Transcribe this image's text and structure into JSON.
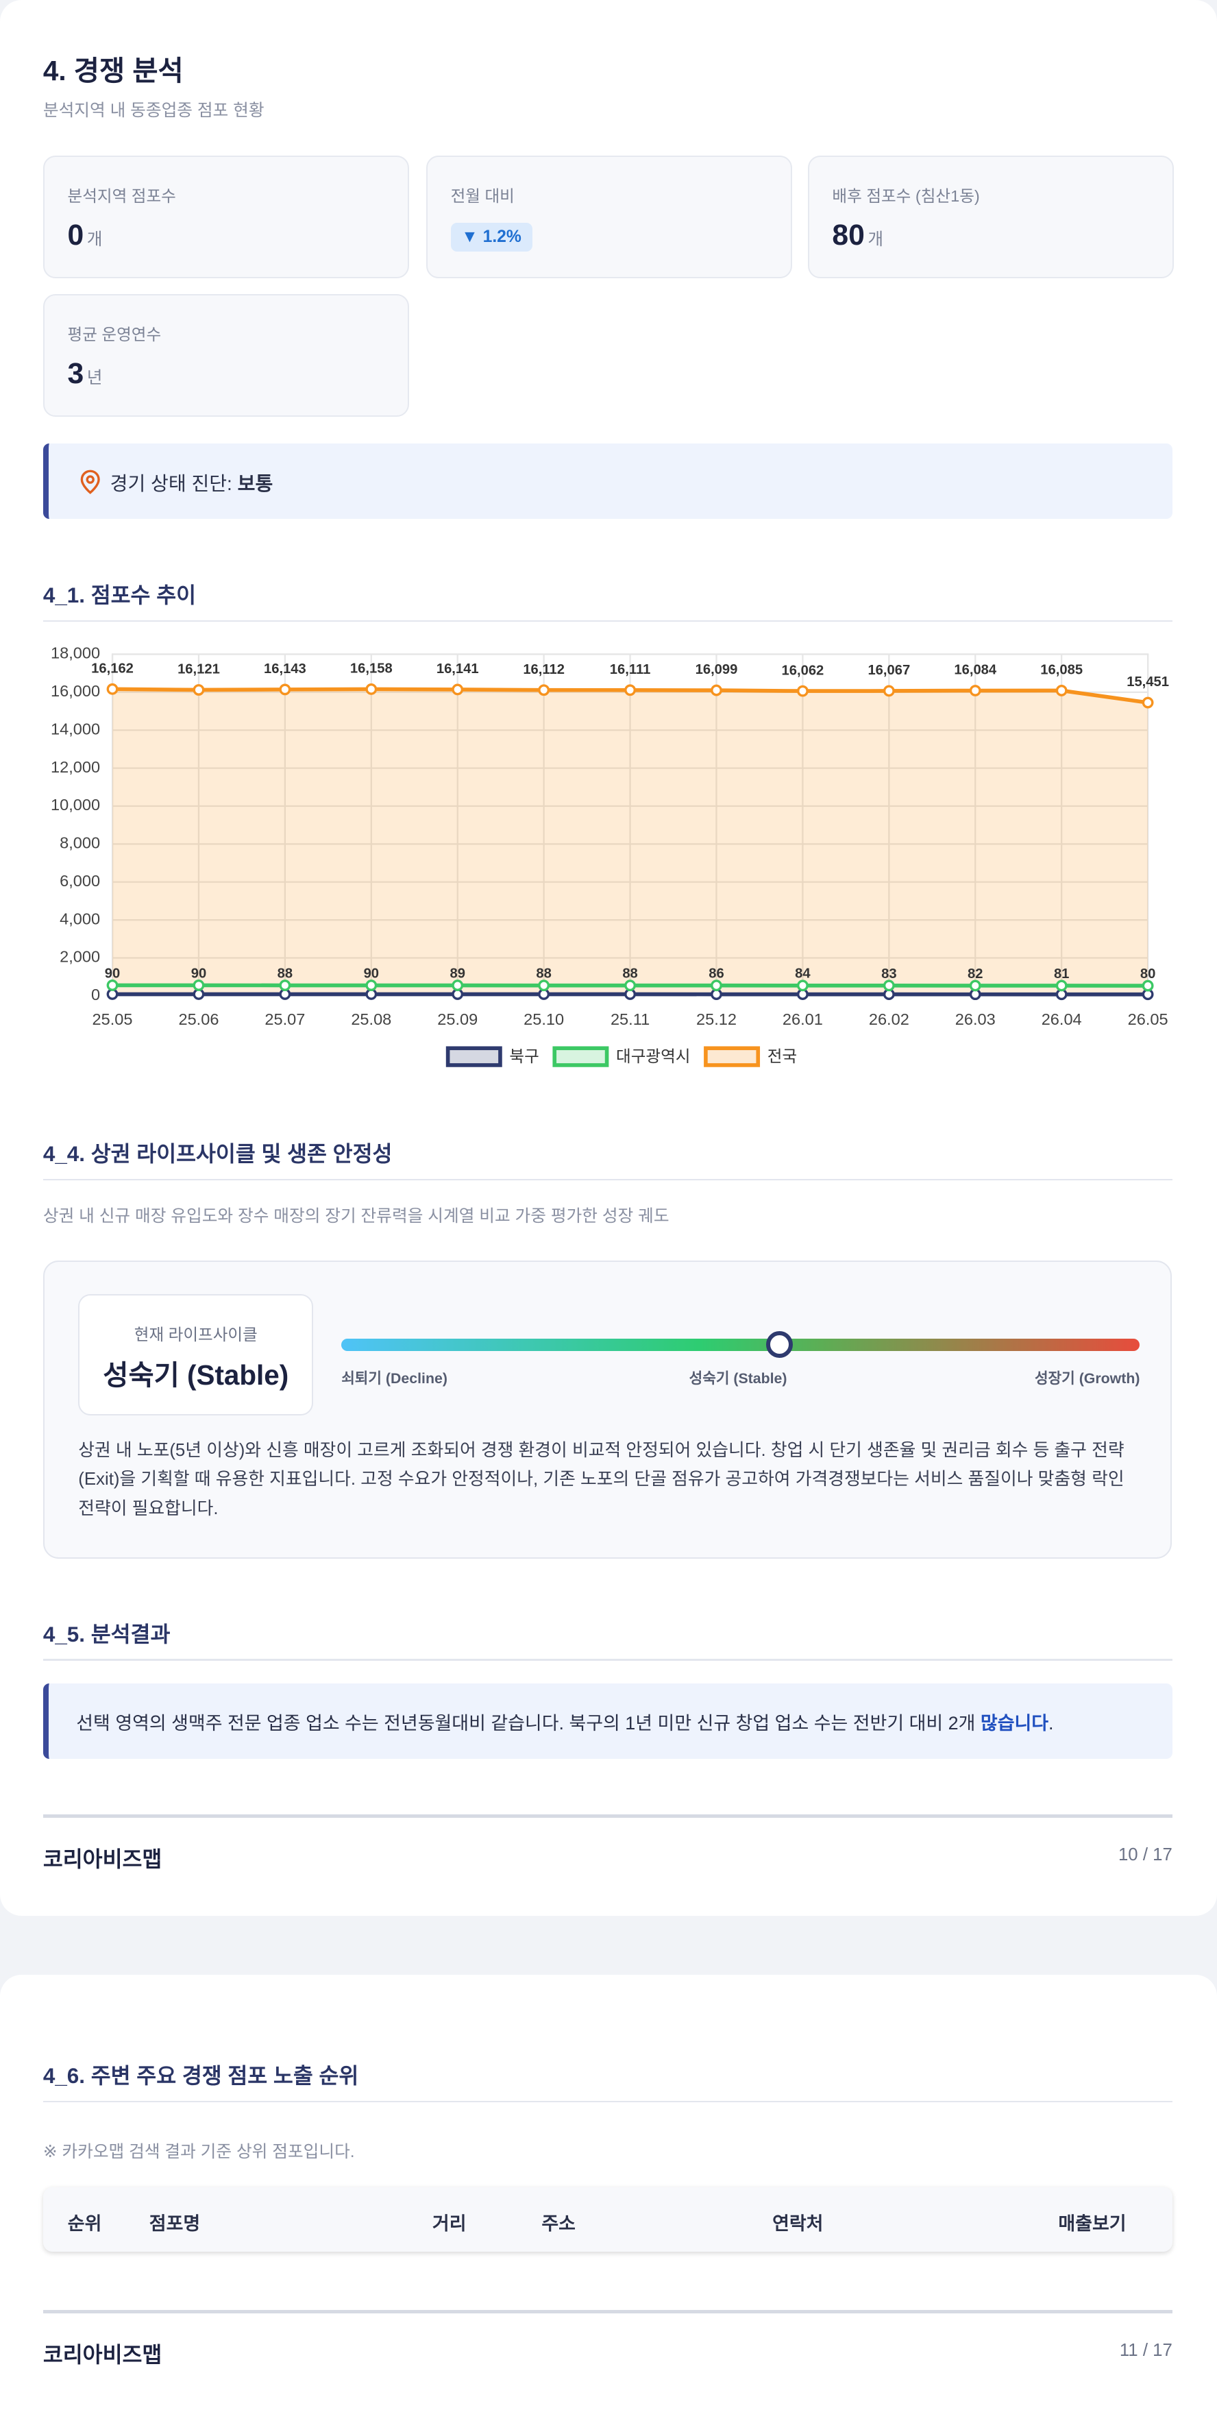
{
  "section": {
    "title": "4. 경쟁 분석",
    "subtitle": "분석지역 내 동종업종 점포 현황"
  },
  "stats": [
    {
      "label": "분석지역 점포수",
      "value": 0,
      "unit": "개"
    },
    {
      "label": "전월 대비",
      "value": "1.2%"
    },
    {
      "label": "배후 점포수 (침산1동)",
      "value": 80,
      "unit": "개"
    },
    {
      "label": "평균 운영연수",
      "value": 3,
      "unit": "년"
    }
  ],
  "diagnosis": {
    "label": "경기 상태 진단:",
    "value": "보통"
  },
  "trend": {
    "title": "4_1. 점포수 추이"
  },
  "chart_data": {
    "type": "line",
    "categories": [
      "25.05",
      "25.06",
      "25.07",
      "25.08",
      "25.09",
      "25.10",
      "25.11",
      "25.12",
      "26.01",
      "26.02",
      "26.03",
      "26.04",
      "26.05"
    ],
    "ylim": [
      0,
      18000
    ],
    "yticks": [
      0,
      {
        "value": 2000,
        "label": "2,000"
      },
      {
        "value": 4000,
        "label": "4,000"
      },
      {
        "value": 6000,
        "label": "6,000"
      },
      {
        "value": 8000,
        "label": "8,000"
      },
      {
        "value": 10000,
        "label": "10,000"
      },
      {
        "value": 12000,
        "label": "12,000"
      },
      {
        "value": 14000,
        "label": "14,000"
      },
      {
        "value": 16000,
        "label": "16,000"
      },
      {
        "value": 18000,
        "label": "18,000"
      }
    ],
    "grid": true,
    "legend": "bottom",
    "series": [
      {
        "name": "북구",
        "color": "#2e3a6e",
        "data_labels": true,
        "values": [
          90,
          90,
          88,
          90,
          89,
          88,
          88,
          86,
          84,
          83,
          82,
          81,
          80
        ]
      },
      {
        "name": "대구광역시",
        "color": "#3cc864",
        "values": [
          560,
          560,
          555,
          555,
          555,
          550,
          550,
          548,
          545,
          545,
          540,
          540,
          535
        ]
      },
      {
        "name": "전국",
        "color": "#f7931e",
        "area": true,
        "data_labels": true,
        "values": [
          16162,
          16121,
          16143,
          16158,
          16141,
          16112,
          16111,
          16099,
          16062,
          16067,
          16084,
          16085,
          15451
        ],
        "value_labels": [
          "16,162",
          "16,121",
          "16,143",
          "16,158",
          "16,141",
          "16,112",
          "16,111",
          "16,099",
          "16,062",
          "16,067",
          "16,084",
          "16,085",
          "15,451"
        ]
      }
    ]
  },
  "lifecycle": {
    "title": "4_4. 상권 라이프사이클 및 생존 안정성",
    "subtitle": "상권 내 신규 매장 유입도와 장수 매장의 장기 잔류력을 시계열 비교 가중 평가한 성장 궤도",
    "current_label": "현재 라이프사이클",
    "current": "성숙기 (Stable)",
    "stages": [
      "쇠퇴기 (Decline)",
      "성숙기 (Stable)",
      "성장기 (Growth)"
    ],
    "description": "상권 내 노포(5년 이상)와 신흥 매장이 고르게 조화되어 경쟁 환경이 비교적 안정되어 있습니다. 창업 시 단기 생존율 및 권리금 회수 등 출구 전략(Exit)을 기획할 때 유용한 지표입니다. 고정 수요가 안정적이나, 기존 노포의 단골 점유가 공고하여 가격경쟁보다는 서비스 품질이나 맞춤형 락인 전략이 필요합니다."
  },
  "result": {
    "title": "4_5. 분석결과",
    "text": "선택 영역의 생맥주 전문 업종 업소 수는 전년동월대비 같습니다. 북구의 1년 미만 신규 창업 업소 수는 전반기 대비 2개 ",
    "highlight": "많습니다",
    "end": "."
  },
  "footers": [
    {
      "brand": "코리아비즈맵",
      "page": "10 / 17"
    },
    {
      "brand": "코리아비즈맵",
      "page": "11 / 17"
    }
  ],
  "ranking": {
    "title": "4_6. 주변 주요 경쟁 점포 노출 순위",
    "note": "※ 카카오맵 검색 결과 기준 상위 점포입니다.",
    "columns": [
      "순위",
      "점포명",
      "거리",
      "주소",
      "연락처",
      "매출보기"
    ]
  }
}
